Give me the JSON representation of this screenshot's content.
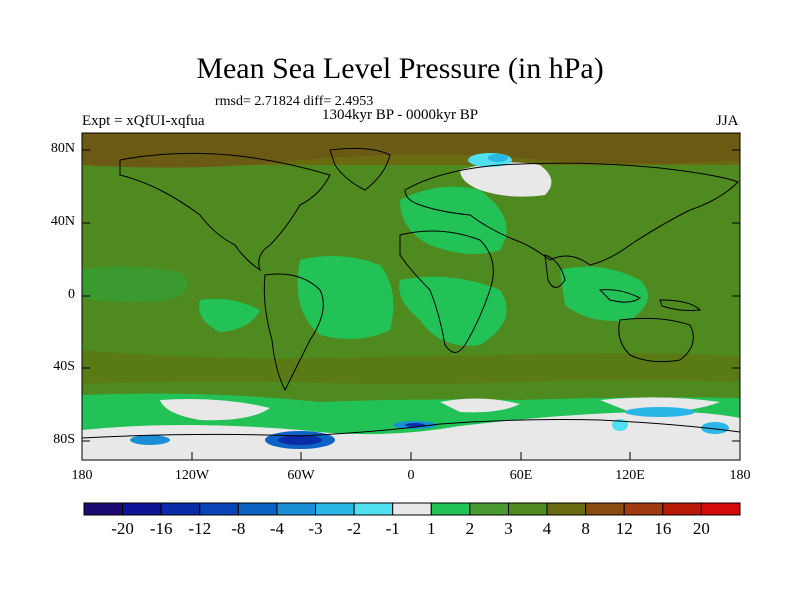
{
  "title": "Mean Sea Level Pressure (in hPa)",
  "stats_line": "rmsd= 2.71824 diff= 2.4953",
  "period": "1304kyr BP - 0000kyr BP",
  "experiment": "Expt = xQfUI-xqfua",
  "season": "JJA",
  "axes": {
    "y_ticks": [
      "80N",
      "40N",
      "0",
      "40S",
      "80S"
    ],
    "x_ticks": [
      "180",
      "120W",
      "60W",
      "0",
      "60E",
      "120E",
      "180"
    ]
  },
  "colorbar": {
    "labels": [
      "-20",
      "-16",
      "-12",
      "-8",
      "-4",
      "-3",
      "-2",
      "-1",
      "1",
      "2",
      "3",
      "4",
      "8",
      "12",
      "16",
      "20"
    ],
    "colors": [
      "#1c0a72",
      "#0d1596",
      "#0b2ca8",
      "#0945b6",
      "#0d63c4",
      "#1a8fd6",
      "#2ab6e6",
      "#50e0f0",
      "#e8e8e8",
      "#22c257",
      "#4a9a33",
      "#4f8a20",
      "#6a6a10",
      "#8b4a10",
      "#a03a10",
      "#b81a0a",
      "#d40a0a"
    ]
  }
}
